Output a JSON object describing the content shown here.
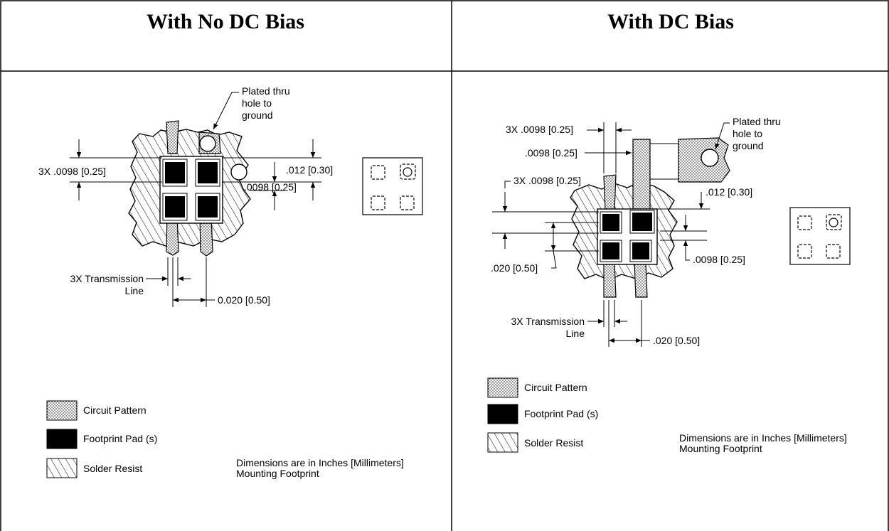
{
  "table": {
    "left_header": "With No DC Bias",
    "right_header": "With DC Bias"
  },
  "left": {
    "plated_hole": [
      "Plated thru",
      "hole to",
      "ground"
    ],
    "dim_3x_pad": "3X .0098 [0.25]",
    "dim_012": ".012 [0.30]",
    "dim_0098": ".0098 [0.25]",
    "tline": [
      "3X Transmission",
      "Line"
    ],
    "dim_pitch": "0.020 [0.50]",
    "legend": [
      "Circuit Pattern",
      "Footprint Pad (s)",
      "Solder Resist"
    ],
    "note": [
      "Dimensions are in Inches [Millimeters]",
      "Mounting Footprint"
    ]
  },
  "right": {
    "plated_hole": [
      "Plated thru",
      "hole to",
      "ground"
    ],
    "dim_3x_top": "3X .0098 [0.25]",
    "dim_0098_top": ".0098 [0.25]",
    "dim_3x_pad": "3X .0098 [0.25]",
    "dim_012": ".012 [0.30]",
    "dim_020_left": ".020 [0.50]",
    "dim_0098": ".0098 [0.25]",
    "tline": [
      "3X Transmission",
      "Line"
    ],
    "dim_pitch": ".020 [0.50]",
    "legend": [
      "Circuit Pattern",
      "Footprint Pad (s)",
      "Solder Resist"
    ],
    "note": [
      "Dimensions are in Inches [Millimeters]",
      "Mounting Footprint"
    ]
  }
}
